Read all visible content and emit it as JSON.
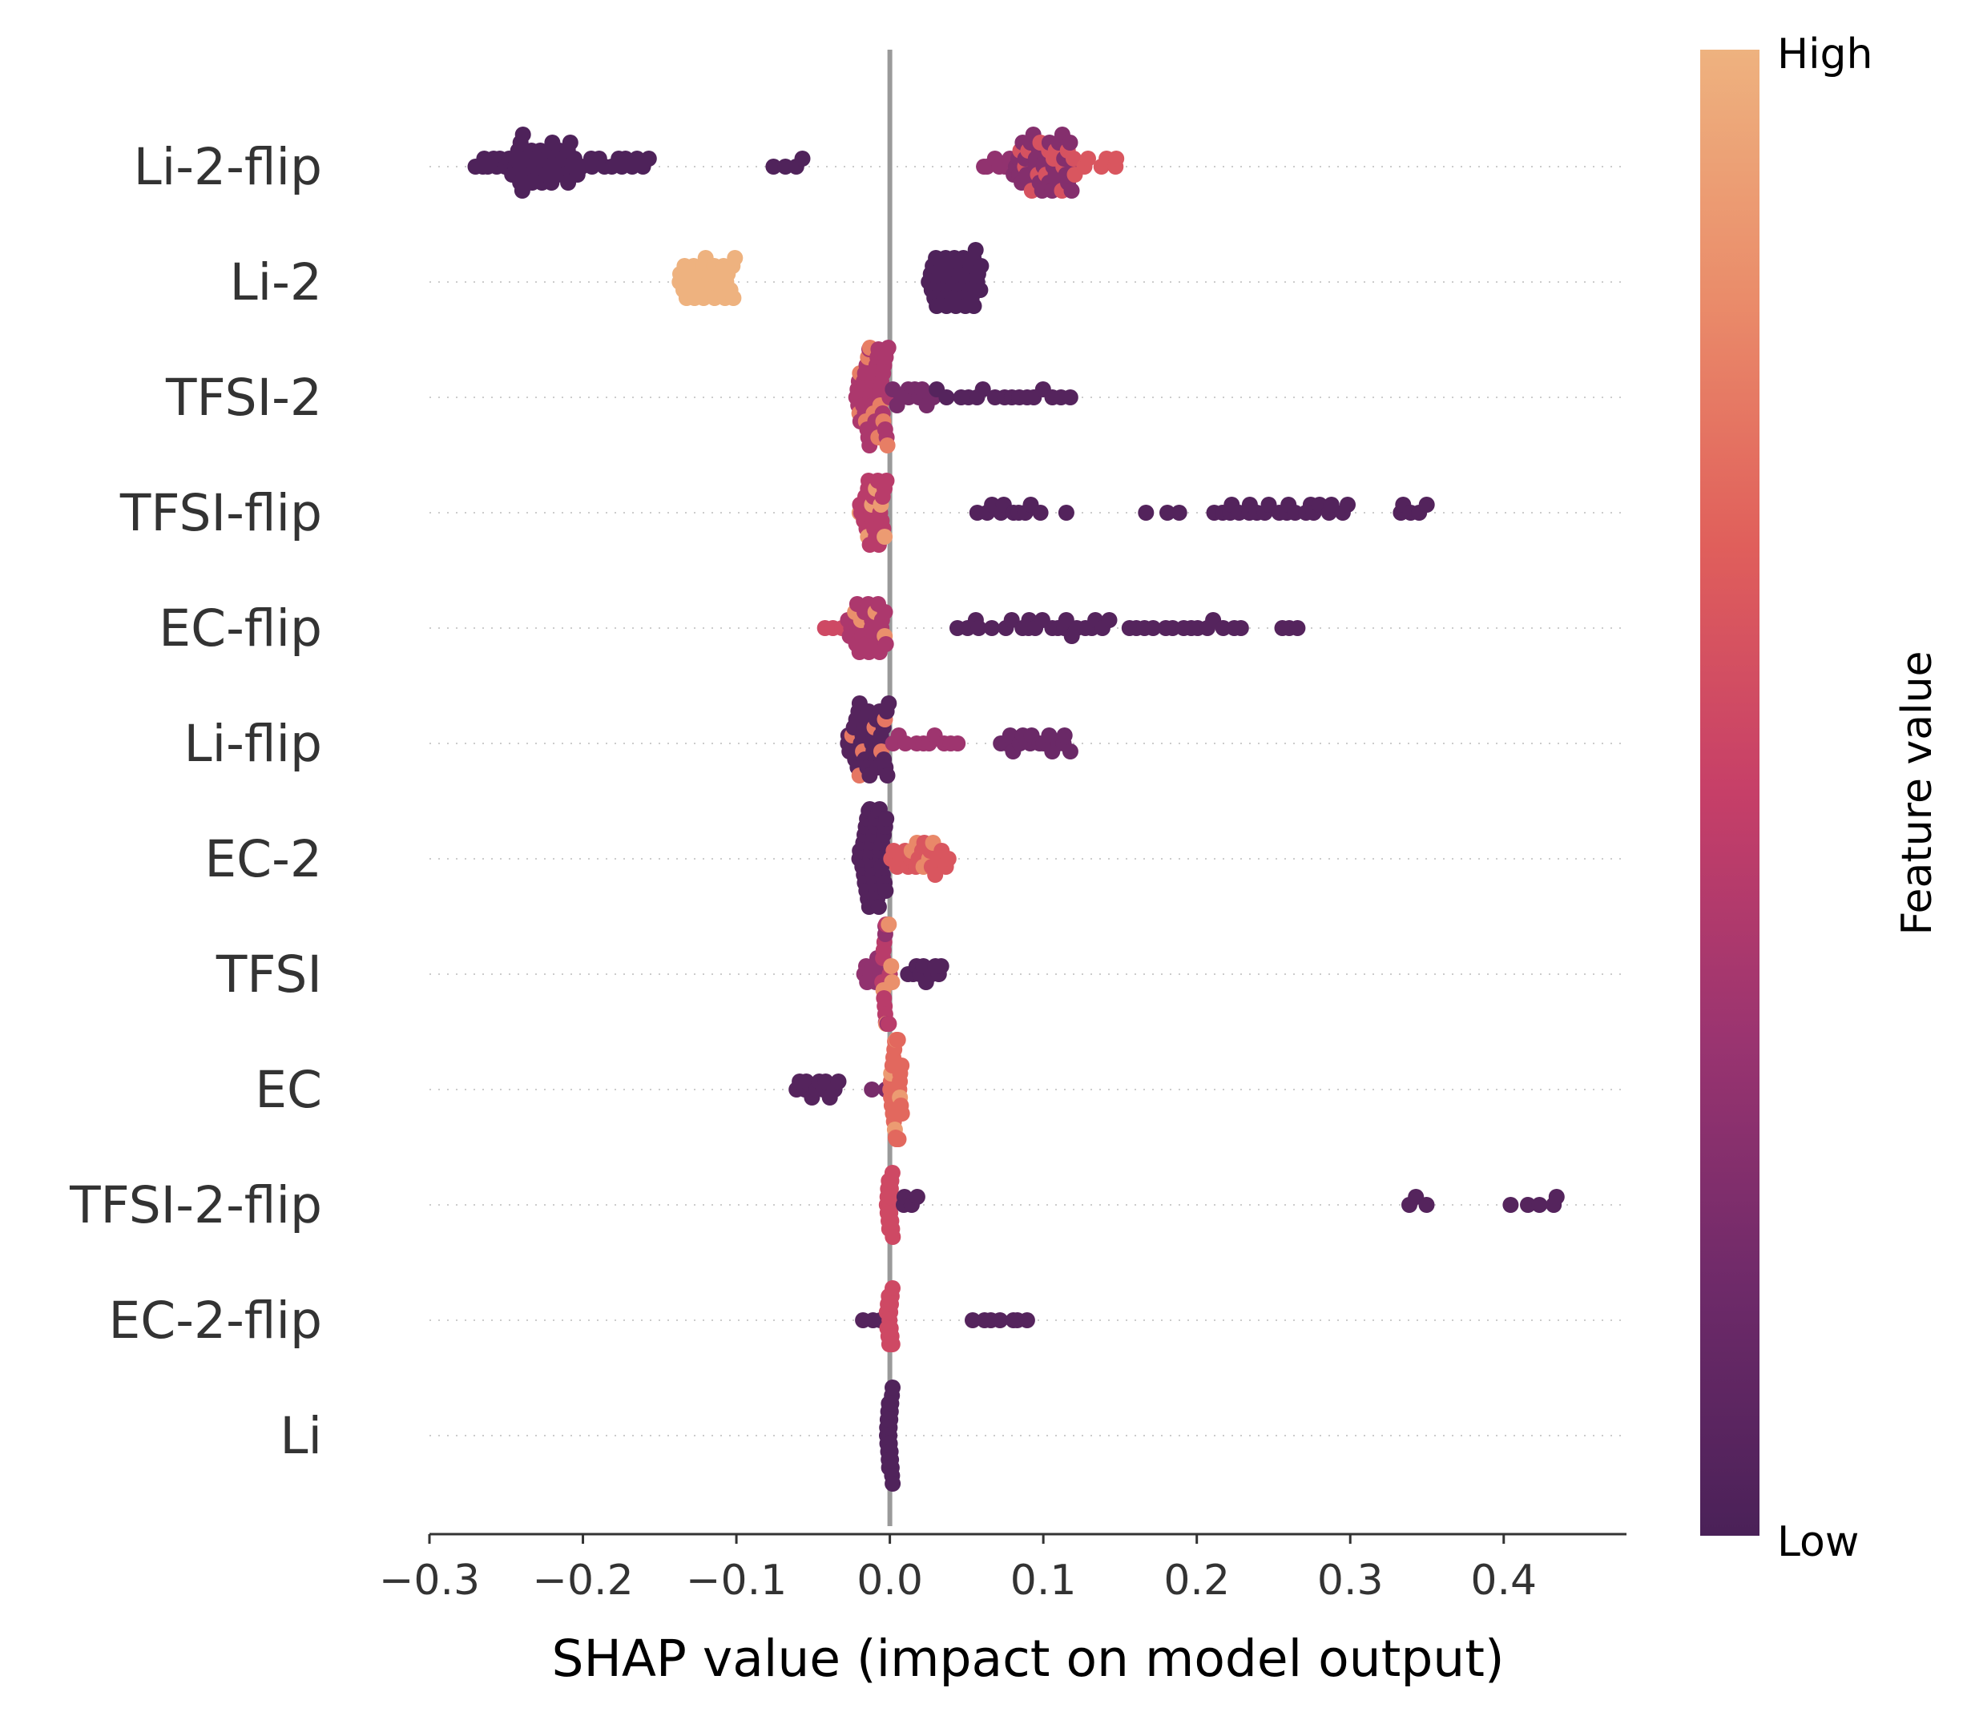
{
  "chart_data": {
    "type": "scatter",
    "subtype": "shap-beeswarm",
    "title": "",
    "xlabel": "SHAP value (impact on model output)",
    "xlim": [
      -0.3,
      0.48
    ],
    "x_ticks": [
      -0.3,
      -0.2,
      -0.1,
      0.0,
      0.1,
      0.2,
      0.3,
      0.4
    ],
    "x_tick_labels": [
      "−0.3",
      "−0.2",
      "−0.1",
      "0.0",
      "0.1",
      "0.2",
      "0.3",
      "0.4"
    ],
    "zero_line": 0.0,
    "colorbar": {
      "label": "Feature value",
      "high_label": "High",
      "low_label": "Low",
      "stops": [
        "#4a2158",
        "#6e2a69",
        "#9a3470",
        "#c63f68",
        "#e05f5b",
        "#ea8c6a",
        "#eeb27f"
      ]
    },
    "features": [
      {
        "name": "Li-2-flip",
        "groups": [
          {
            "range": [
              -0.27,
              -0.24
            ],
            "value": 0.02,
            "n": 12
          },
          {
            "range": [
              -0.245,
              -0.205
            ],
            "value": 0.02,
            "n": 34
          },
          {
            "range": [
              -0.205,
              -0.155
            ],
            "value": 0.02,
            "n": 14
          },
          {
            "range": [
              -0.078,
              -0.052
            ],
            "value": 0.03,
            "n": 4
          },
          {
            "range": [
              0.058,
              0.08
            ],
            "value": 0.3,
            "n": 6
          },
          {
            "range": [
              0.08,
              0.12
            ],
            "value": 0.25,
            "n": 32
          },
          {
            "range": [
              0.085,
              0.12
            ],
            "value": 0.6,
            "n": 14
          },
          {
            "range": [
              0.12,
              0.152
            ],
            "value": 0.62,
            "n": 7
          }
        ]
      },
      {
        "name": "Li-2",
        "groups": [
          {
            "range": [
              -0.138,
              -0.1
            ],
            "value": 1.0,
            "n": 32
          },
          {
            "range": [
              0.025,
              0.06
            ],
            "value": 0.02,
            "n": 40
          }
        ]
      },
      {
        "name": "TFSI-2",
        "groups": [
          {
            "range": [
              -0.022,
              0.0
            ],
            "value": 0.4,
            "n": 38
          },
          {
            "range": [
              -0.022,
              0.0
            ],
            "value": 0.78,
            "n": 10
          },
          {
            "range": [
              0.0,
              0.03
            ],
            "value": 0.2,
            "n": 10
          },
          {
            "range": [
              0.03,
              0.12
            ],
            "value": 0.05,
            "n": 16
          }
        ]
      },
      {
        "name": "TFSI-flip",
        "groups": [
          {
            "range": [
              -0.02,
              -0.002
            ],
            "value": 0.45,
            "n": 22
          },
          {
            "range": [
              -0.02,
              -0.002
            ],
            "value": 0.9,
            "n": 6
          },
          {
            "range": [
              0.055,
              0.1
            ],
            "value": 0.04,
            "n": 10
          },
          {
            "range": [
              0.115,
              0.115
            ],
            "value": 0.04,
            "n": 1
          },
          {
            "range": [
              0.165,
              0.19
            ],
            "value": 0.04,
            "n": 3
          },
          {
            "range": [
              0.21,
              0.3
            ],
            "value": 0.04,
            "n": 22
          },
          {
            "range": [
              0.33,
              0.35
            ],
            "value": 0.04,
            "n": 5
          }
        ]
      },
      {
        "name": "EC-flip",
        "groups": [
          {
            "range": [
              -0.045,
              -0.03
            ],
            "value": 0.55,
            "n": 3
          },
          {
            "range": [
              -0.028,
              -0.002
            ],
            "value": 0.4,
            "n": 24
          },
          {
            "range": [
              -0.028,
              -0.002
            ],
            "value": 0.85,
            "n": 4
          },
          {
            "range": [
              0.04,
              0.068
            ],
            "value": 0.05,
            "n": 5
          },
          {
            "range": [
              0.075,
              0.145
            ],
            "value": 0.05,
            "n": 18
          },
          {
            "range": [
              0.155,
              0.23
            ],
            "value": 0.05,
            "n": 14
          },
          {
            "range": [
              0.25,
              0.268
            ],
            "value": 0.05,
            "n": 3
          }
        ]
      },
      {
        "name": "Li-flip",
        "groups": [
          {
            "range": [
              -0.028,
              0.0
            ],
            "value": 0.05,
            "n": 34
          },
          {
            "range": [
              -0.028,
              0.0
            ],
            "value": 0.75,
            "n": 6
          },
          {
            "range": [
              0.0,
              0.045
            ],
            "value": 0.35,
            "n": 10
          },
          {
            "range": [
              0.07,
              0.12
            ],
            "value": 0.15,
            "n": 16
          }
        ]
      },
      {
        "name": "EC-2",
        "groups": [
          {
            "range": [
              -0.02,
              -0.002
            ],
            "value": 0.04,
            "n": 40
          },
          {
            "range": [
              0.0,
              0.04
            ],
            "value": 0.62,
            "n": 18
          },
          {
            "range": [
              0.012,
              0.03
            ],
            "value": 0.82,
            "n": 5
          }
        ]
      },
      {
        "name": "TFSI",
        "groups": [
          {
            "range": [
              -0.018,
              0.0
            ],
            "value": 0.3,
            "n": 12
          },
          {
            "range": [
              -0.005,
              0.0
            ],
            "value": 0.45,
            "n": 16
          },
          {
            "range": [
              -0.005,
              0.003
            ],
            "value": 0.85,
            "n": 5
          },
          {
            "range": [
              0.01,
              0.036
            ],
            "value": 0.04,
            "n": 10
          }
        ]
      },
      {
        "name": "EC",
        "groups": [
          {
            "range": [
              -0.063,
              -0.032
            ],
            "value": 0.05,
            "n": 12
          },
          {
            "range": [
              -0.012,
              0.0
            ],
            "value": 0.2,
            "n": 2
          },
          {
            "range": [
              0.0,
              0.008
            ],
            "value": 0.7,
            "n": 22
          },
          {
            "range": [
              0.0,
              0.008
            ],
            "value": 0.9,
            "n": 4
          }
        ]
      },
      {
        "name": "TFSI-2-flip",
        "groups": [
          {
            "range": [
              -0.002,
              0.002
            ],
            "value": 0.55,
            "n": 16
          },
          {
            "range": [
              0.005,
              0.022
            ],
            "value": 0.05,
            "n": 4
          },
          {
            "range": [
              0.33,
              0.356
            ],
            "value": 0.05,
            "n": 3
          },
          {
            "range": [
              0.4,
              0.443
            ],
            "value": 0.05,
            "n": 5
          }
        ]
      },
      {
        "name": "EC-2-flip",
        "groups": [
          {
            "range": [
              -0.018,
              -0.005
            ],
            "value": 0.05,
            "n": 3
          },
          {
            "range": [
              -0.002,
              0.002
            ],
            "value": 0.55,
            "n": 14
          },
          {
            "range": [
              0.052,
              0.092
            ],
            "value": 0.05,
            "n": 7
          }
        ]
      },
      {
        "name": "Li",
        "groups": [
          {
            "range": [
              -0.002,
              0.002
            ],
            "value": 0.03,
            "n": 22
          }
        ]
      }
    ]
  }
}
